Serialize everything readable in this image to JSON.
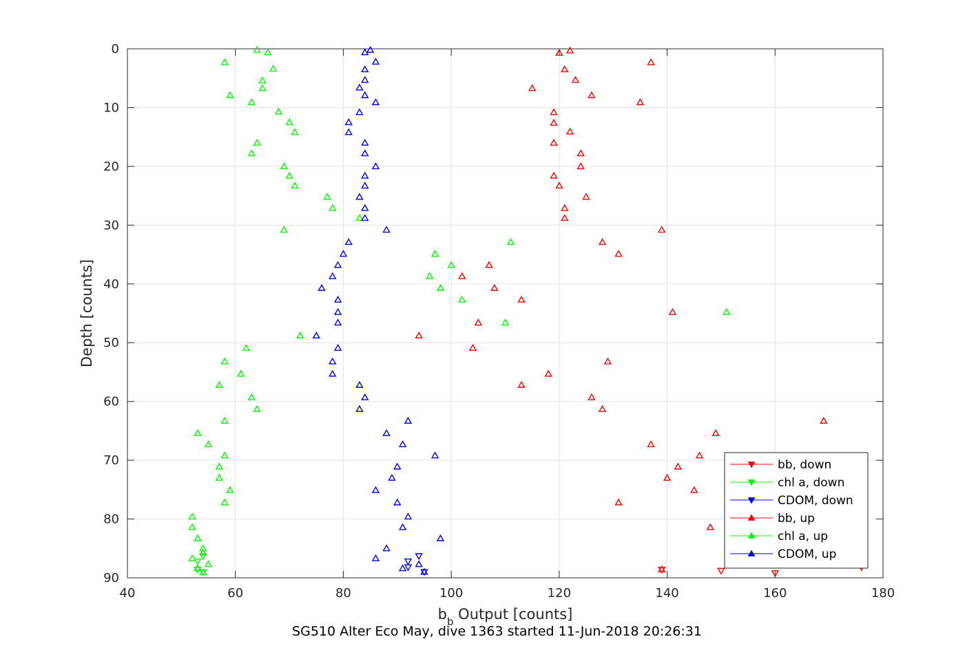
{
  "chart_data": {
    "type": "scatter",
    "title": "SG510 Alter Eco May, dive 1363 started 11-Jun-2018 20:26:31",
    "xlabel_main": "b",
    "xlabel_sub": "b",
    "xlabel_rest": " Output [counts]",
    "ylabel": "Depth [counts]",
    "xlim": [
      40,
      180
    ],
    "ylim": [
      0,
      90
    ],
    "y_reversed": true,
    "grid": true,
    "legend_position": "bottom-right",
    "x_ticks": [
      "40",
      "60",
      "80",
      "100",
      "120",
      "140",
      "160",
      "180"
    ],
    "y_ticks": [
      "0",
      "10",
      "20",
      "30",
      "40",
      "50",
      "60",
      "70",
      "80",
      "90"
    ],
    "series": [
      {
        "name": "bb, down",
        "color": "#ff0000",
        "marker": "triangle-down",
        "points": [
          [
            150,
            88.8
          ],
          [
            156,
            87.8
          ],
          [
            160,
            89.2
          ],
          [
            176,
            88.2
          ],
          [
            139,
            88.6
          ]
        ]
      },
      {
        "name": "chl a, down",
        "color": "#00ff00",
        "marker": "triangle-down",
        "points": [
          [
            53,
            87.2
          ],
          [
            54,
            86.3
          ],
          [
            53,
            88.6
          ],
          [
            54,
            89.0
          ]
        ]
      },
      {
        "name": "CDOM, down",
        "color": "#0000ff",
        "marker": "triangle-down",
        "points": [
          [
            94,
            86.3
          ],
          [
            92,
            87.2
          ],
          [
            95,
            89.0
          ],
          [
            92,
            88.2
          ]
        ]
      },
      {
        "name": "bb, up",
        "color": "#ff0000",
        "marker": "triangle-up",
        "points": [
          [
            122,
            0.3
          ],
          [
            120,
            0.7
          ],
          [
            137,
            2.3
          ],
          [
            121,
            3.5
          ],
          [
            123,
            5.3
          ],
          [
            115,
            6.7
          ],
          [
            126,
            7.9
          ],
          [
            135,
            9.1
          ],
          [
            119,
            10.8
          ],
          [
            119,
            12.6
          ],
          [
            122,
            14.1
          ],
          [
            119,
            16.0
          ],
          [
            124,
            17.8
          ],
          [
            124,
            20.0
          ],
          [
            119,
            21.6
          ],
          [
            120,
            23.3
          ],
          [
            125,
            25.2
          ],
          [
            121,
            27.1
          ],
          [
            121,
            28.8
          ],
          [
            139,
            30.8
          ],
          [
            128,
            32.9
          ],
          [
            131,
            34.9
          ],
          [
            107,
            36.8
          ],
          [
            102,
            38.7
          ],
          [
            108,
            40.7
          ],
          [
            113,
            42.7
          ],
          [
            141,
            44.8
          ],
          [
            105,
            46.6
          ],
          [
            94,
            48.8
          ],
          [
            104,
            50.9
          ],
          [
            129,
            53.2
          ],
          [
            118,
            55.3
          ],
          [
            113,
            57.2
          ],
          [
            126,
            59.3
          ],
          [
            128,
            61.3
          ],
          [
            169,
            63.3
          ],
          [
            149,
            65.4
          ],
          [
            137,
            67.3
          ],
          [
            146,
            69.2
          ],
          [
            142,
            71.1
          ],
          [
            140,
            73.0
          ],
          [
            145,
            75.1
          ],
          [
            131,
            77.2
          ],
          [
            148,
            81.4
          ],
          [
            156,
            87.7
          ],
          [
            139,
            88.6
          ]
        ]
      },
      {
        "name": "chl a, up",
        "color": "#00ff00",
        "marker": "triangle-up",
        "points": [
          [
            64,
            0.2
          ],
          [
            66,
            0.6
          ],
          [
            58,
            2.3
          ],
          [
            67,
            3.4
          ],
          [
            65,
            5.4
          ],
          [
            65,
            6.7
          ],
          [
            59,
            7.9
          ],
          [
            63,
            9.1
          ],
          [
            68,
            10.7
          ],
          [
            70,
            12.5
          ],
          [
            71,
            14.2
          ],
          [
            64,
            16.0
          ],
          [
            63,
            17.8
          ],
          [
            69,
            20.0
          ],
          [
            70,
            21.6
          ],
          [
            71,
            23.3
          ],
          [
            77,
            25.2
          ],
          [
            78,
            27.1
          ],
          [
            83,
            28.8
          ],
          [
            69,
            30.8
          ],
          [
            111,
            32.9
          ],
          [
            97,
            34.9
          ],
          [
            100,
            36.8
          ],
          [
            96,
            38.7
          ],
          [
            98,
            40.7
          ],
          [
            102,
            42.7
          ],
          [
            151,
            44.8
          ],
          [
            110,
            46.6
          ],
          [
            72,
            48.8
          ],
          [
            62,
            50.9
          ],
          [
            58,
            53.2
          ],
          [
            61,
            55.3
          ],
          [
            57,
            57.2
          ],
          [
            63,
            59.3
          ],
          [
            64,
            61.3
          ],
          [
            58,
            63.3
          ],
          [
            53,
            65.4
          ],
          [
            55,
            67.3
          ],
          [
            58,
            69.2
          ],
          [
            57,
            71.1
          ],
          [
            57,
            73.0
          ],
          [
            59,
            75.1
          ],
          [
            58,
            77.2
          ],
          [
            52,
            79.6
          ],
          [
            52,
            81.4
          ],
          [
            53,
            83.3
          ],
          [
            54,
            85.0
          ],
          [
            54,
            85.7
          ],
          [
            52,
            86.7
          ],
          [
            55,
            87.7
          ],
          [
            53,
            88.4
          ],
          [
            54,
            89.1
          ]
        ]
      },
      {
        "name": "CDOM, up",
        "color": "#0000ff",
        "marker": "triangle-up",
        "points": [
          [
            85,
            0.2
          ],
          [
            84,
            0.6
          ],
          [
            86,
            2.2
          ],
          [
            84,
            3.5
          ],
          [
            84,
            5.3
          ],
          [
            83,
            6.6
          ],
          [
            84,
            7.9
          ],
          [
            86,
            9.1
          ],
          [
            83,
            10.8
          ],
          [
            81,
            12.5
          ],
          [
            81,
            14.2
          ],
          [
            84,
            16.0
          ],
          [
            84,
            17.8
          ],
          [
            86,
            20.0
          ],
          [
            84,
            21.6
          ],
          [
            84,
            23.3
          ],
          [
            83,
            25.2
          ],
          [
            84,
            27.1
          ],
          [
            84,
            28.8
          ],
          [
            88,
            30.8
          ],
          [
            81,
            32.9
          ],
          [
            80,
            34.9
          ],
          [
            79,
            36.8
          ],
          [
            78,
            38.7
          ],
          [
            76,
            40.7
          ],
          [
            79,
            42.7
          ],
          [
            79,
            44.8
          ],
          [
            79,
            46.6
          ],
          [
            75,
            48.8
          ],
          [
            79,
            50.9
          ],
          [
            78,
            53.2
          ],
          [
            78,
            55.3
          ],
          [
            83,
            57.2
          ],
          [
            84,
            59.3
          ],
          [
            83,
            61.3
          ],
          [
            92,
            63.3
          ],
          [
            88,
            65.4
          ],
          [
            91,
            67.3
          ],
          [
            97,
            69.2
          ],
          [
            90,
            71.1
          ],
          [
            89,
            73.0
          ],
          [
            86,
            75.1
          ],
          [
            90,
            77.2
          ],
          [
            92,
            79.6
          ],
          [
            91,
            81.4
          ],
          [
            98,
            83.3
          ],
          [
            88,
            85.0
          ],
          [
            86,
            86.7
          ],
          [
            94,
            87.7
          ],
          [
            91,
            88.4
          ],
          [
            95,
            89.0
          ]
        ]
      }
    ]
  }
}
